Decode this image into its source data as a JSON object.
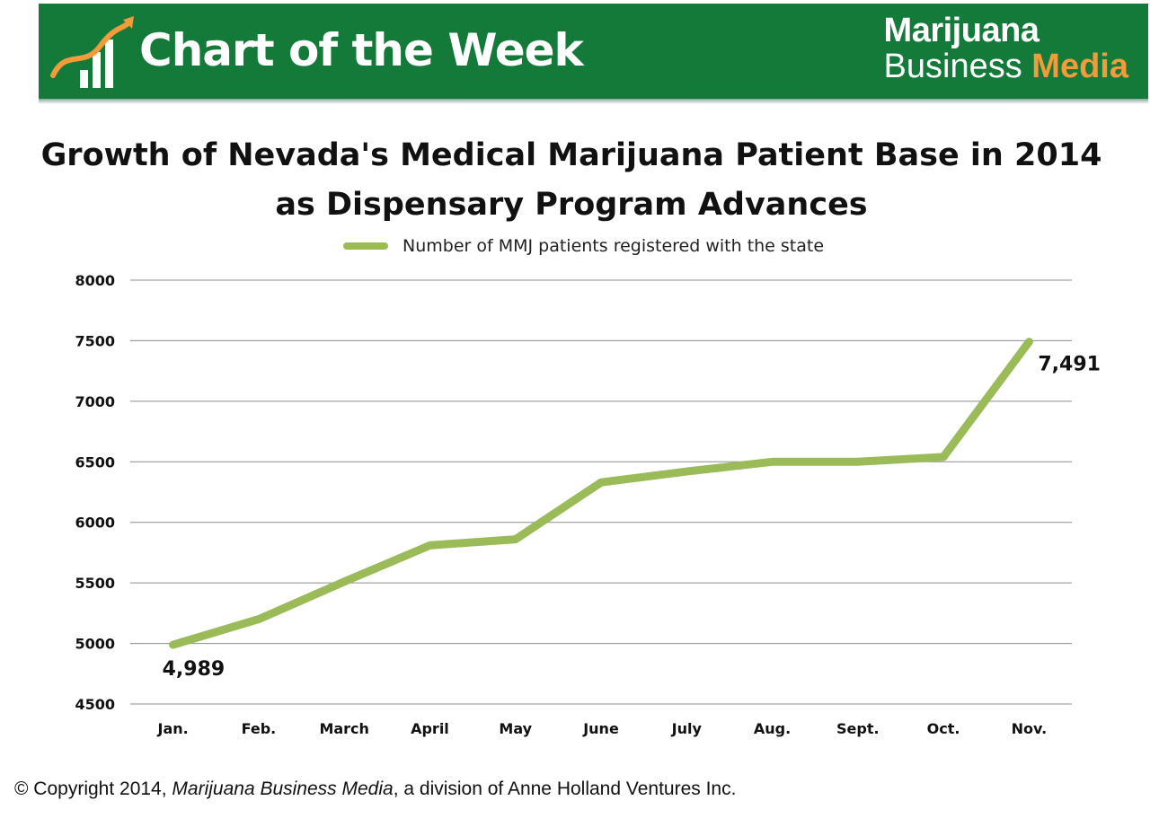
{
  "banner": {
    "title": "Chart of the Week",
    "brand_line1": "Marijuana",
    "brand_line2_a": "Business ",
    "brand_line2_b": "Media",
    "colors": {
      "background": "#137a3a",
      "accent": "#f39a3b",
      "text": "#ffffff"
    }
  },
  "chart_data": {
    "type": "line",
    "title_line1": "Growth of Nevada's Medical Marijuana Patient Base in 2014",
    "title_line2": "as Dispensary Program Advances",
    "categories": [
      "Jan.",
      "Feb.",
      "March",
      "April",
      "May",
      "June",
      "July",
      "Aug.",
      "Sept.",
      "Oct.",
      "Nov."
    ],
    "series": [
      {
        "name": "Number of MMJ patients registered with the state",
        "values": [
          4989,
          5200,
          5510,
          5810,
          5860,
          6330,
          6420,
          6500,
          6500,
          6540,
          7491
        ],
        "color": "#9bbb59"
      }
    ],
    "data_labels": [
      {
        "index": 0,
        "text": "4,989"
      },
      {
        "index": 10,
        "text": "7,491"
      }
    ],
    "ylim": [
      4500,
      8000
    ],
    "yticks": [
      4500,
      5000,
      5500,
      6000,
      6500,
      7000,
      7500,
      8000
    ],
    "xlabel": "",
    "ylabel": "",
    "grid": true,
    "legend": "top-center"
  },
  "footer": {
    "prefix": "© Copyright 2014, ",
    "italic": "Marijuana Business Media",
    "suffix": ", a division of Anne Holland Ventures Inc."
  }
}
